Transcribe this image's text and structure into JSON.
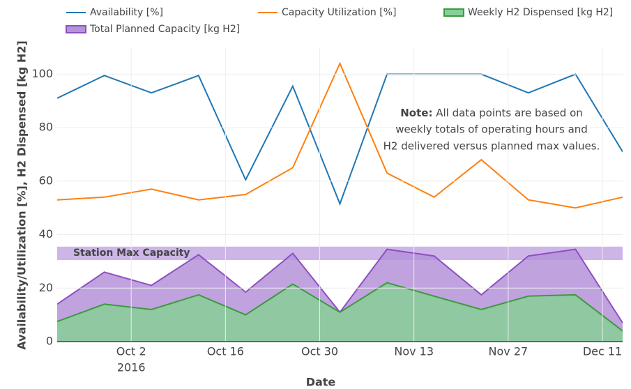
{
  "chart_data": {
    "type": "line",
    "x_title": "Date",
    "y_title": "Availability/Utilization [%], H2 Dispensed [kg H2]",
    "x": [
      "2016-09-21",
      "2016-09-28",
      "2016-10-05",
      "2016-10-12",
      "2016-10-19",
      "2016-10-26",
      "2016-11-02",
      "2016-11-09",
      "2016-11-16",
      "2016-11-23",
      "2016-11-30",
      "2016-12-07",
      "2016-12-14"
    ],
    "xlim": [
      "2016-09-21",
      "2016-12-14"
    ],
    "xticks": [
      {
        "value": "2016-10-02",
        "label": "Oct 2"
      },
      {
        "value": "2016-10-16",
        "label": "Oct 16"
      },
      {
        "value": "2016-10-30",
        "label": "Oct 30"
      },
      {
        "value": "2016-11-13",
        "label": "Nov 13"
      },
      {
        "value": "2016-11-27",
        "label": "Nov 27"
      },
      {
        "value": "2016-12-11",
        "label": "Dec 11"
      }
    ],
    "x_year_label": "2016",
    "ylim": [
      0,
      110
    ],
    "yticks": [
      0,
      20,
      40,
      60,
      80,
      100
    ],
    "grid": true,
    "series": [
      {
        "name": "Availability [%]",
        "color": "#1f77b4",
        "mode": "line",
        "values": [
          91,
          99.5,
          93,
          99.5,
          60.5,
          95.5,
          51.5,
          100,
          100,
          100,
          93,
          100,
          71
        ]
      },
      {
        "name": "Capacity Utilization [%]",
        "color": "#ff7f0e",
        "mode": "line",
        "values": [
          53,
          54,
          57,
          53,
          55,
          65,
          104,
          63,
          54,
          68,
          53,
          50,
          54
        ]
      },
      {
        "name": "Weekly H2 Dispensed [kg H2]",
        "color": "#3c9a3c",
        "fill": "#86cf97",
        "mode": "area",
        "values": [
          7.5,
          14,
          12,
          17.5,
          10,
          21.5,
          11,
          22,
          17,
          12,
          17,
          17.5,
          4
        ]
      },
      {
        "name": "Total Planned Capacity [kg H2]",
        "color": "#8e4fc0",
        "fill": "#b592d9",
        "mode": "area",
        "values": [
          14,
          26,
          21,
          32.5,
          18.5,
          33,
          11,
          34.5,
          32,
          17.5,
          32,
          34.5,
          7
        ]
      }
    ],
    "band": {
      "label": "Station Max Capacity",
      "range": [
        30.5,
        35.5
      ],
      "color": "#cdb5e8"
    },
    "note": {
      "bold": "Note:",
      "lines": [
        "All data points are based on",
        "weekly totals of operating hours and",
        "H2 delivered versus planned max values."
      ]
    }
  }
}
